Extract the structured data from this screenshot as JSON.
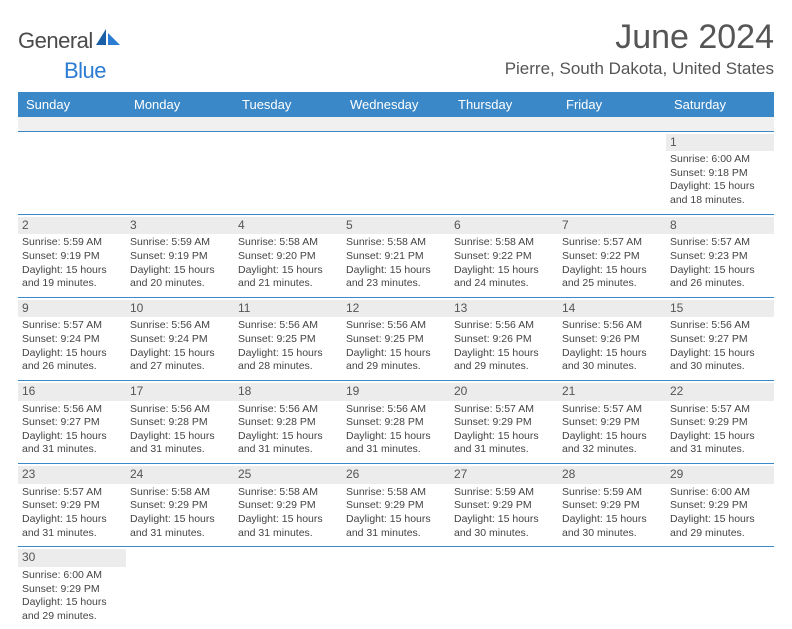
{
  "brand": {
    "name_part1": "General",
    "name_part2": "Blue"
  },
  "title": "June 2024",
  "location": "Pierre, South Dakota, United States",
  "colors": {
    "header_bg": "#3b88c9",
    "header_text": "#ffffff",
    "rule": "#3b88c9",
    "daynum_bg": "#ececec",
    "body_text": "#444444",
    "title_text": "#555555"
  },
  "day_headers": [
    "Sunday",
    "Monday",
    "Tuesday",
    "Wednesday",
    "Thursday",
    "Friday",
    "Saturday"
  ],
  "weeks": [
    [
      null,
      null,
      null,
      null,
      null,
      null,
      {
        "n": "1",
        "sunrise": "6:00 AM",
        "sunset": "9:18 PM",
        "daylight": "15 hours and 18 minutes."
      }
    ],
    [
      {
        "n": "2",
        "sunrise": "5:59 AM",
        "sunset": "9:19 PM",
        "daylight": "15 hours and 19 minutes."
      },
      {
        "n": "3",
        "sunrise": "5:59 AM",
        "sunset": "9:19 PM",
        "daylight": "15 hours and 20 minutes."
      },
      {
        "n": "4",
        "sunrise": "5:58 AM",
        "sunset": "9:20 PM",
        "daylight": "15 hours and 21 minutes."
      },
      {
        "n": "5",
        "sunrise": "5:58 AM",
        "sunset": "9:21 PM",
        "daylight": "15 hours and 23 minutes."
      },
      {
        "n": "6",
        "sunrise": "5:58 AM",
        "sunset": "9:22 PM",
        "daylight": "15 hours and 24 minutes."
      },
      {
        "n": "7",
        "sunrise": "5:57 AM",
        "sunset": "9:22 PM",
        "daylight": "15 hours and 25 minutes."
      },
      {
        "n": "8",
        "sunrise": "5:57 AM",
        "sunset": "9:23 PM",
        "daylight": "15 hours and 26 minutes."
      }
    ],
    [
      {
        "n": "9",
        "sunrise": "5:57 AM",
        "sunset": "9:24 PM",
        "daylight": "15 hours and 26 minutes."
      },
      {
        "n": "10",
        "sunrise": "5:56 AM",
        "sunset": "9:24 PM",
        "daylight": "15 hours and 27 minutes."
      },
      {
        "n": "11",
        "sunrise": "5:56 AM",
        "sunset": "9:25 PM",
        "daylight": "15 hours and 28 minutes."
      },
      {
        "n": "12",
        "sunrise": "5:56 AM",
        "sunset": "9:25 PM",
        "daylight": "15 hours and 29 minutes."
      },
      {
        "n": "13",
        "sunrise": "5:56 AM",
        "sunset": "9:26 PM",
        "daylight": "15 hours and 29 minutes."
      },
      {
        "n": "14",
        "sunrise": "5:56 AM",
        "sunset": "9:26 PM",
        "daylight": "15 hours and 30 minutes."
      },
      {
        "n": "15",
        "sunrise": "5:56 AM",
        "sunset": "9:27 PM",
        "daylight": "15 hours and 30 minutes."
      }
    ],
    [
      {
        "n": "16",
        "sunrise": "5:56 AM",
        "sunset": "9:27 PM",
        "daylight": "15 hours and 31 minutes."
      },
      {
        "n": "17",
        "sunrise": "5:56 AM",
        "sunset": "9:28 PM",
        "daylight": "15 hours and 31 minutes."
      },
      {
        "n": "18",
        "sunrise": "5:56 AM",
        "sunset": "9:28 PM",
        "daylight": "15 hours and 31 minutes."
      },
      {
        "n": "19",
        "sunrise": "5:56 AM",
        "sunset": "9:28 PM",
        "daylight": "15 hours and 31 minutes."
      },
      {
        "n": "20",
        "sunrise": "5:57 AM",
        "sunset": "9:29 PM",
        "daylight": "15 hours and 31 minutes."
      },
      {
        "n": "21",
        "sunrise": "5:57 AM",
        "sunset": "9:29 PM",
        "daylight": "15 hours and 32 minutes."
      },
      {
        "n": "22",
        "sunrise": "5:57 AM",
        "sunset": "9:29 PM",
        "daylight": "15 hours and 31 minutes."
      }
    ],
    [
      {
        "n": "23",
        "sunrise": "5:57 AM",
        "sunset": "9:29 PM",
        "daylight": "15 hours and 31 minutes."
      },
      {
        "n": "24",
        "sunrise": "5:58 AM",
        "sunset": "9:29 PM",
        "daylight": "15 hours and 31 minutes."
      },
      {
        "n": "25",
        "sunrise": "5:58 AM",
        "sunset": "9:29 PM",
        "daylight": "15 hours and 31 minutes."
      },
      {
        "n": "26",
        "sunrise": "5:58 AM",
        "sunset": "9:29 PM",
        "daylight": "15 hours and 31 minutes."
      },
      {
        "n": "27",
        "sunrise": "5:59 AM",
        "sunset": "9:29 PM",
        "daylight": "15 hours and 30 minutes."
      },
      {
        "n": "28",
        "sunrise": "5:59 AM",
        "sunset": "9:29 PM",
        "daylight": "15 hours and 30 minutes."
      },
      {
        "n": "29",
        "sunrise": "6:00 AM",
        "sunset": "9:29 PM",
        "daylight": "15 hours and 29 minutes."
      }
    ],
    [
      {
        "n": "30",
        "sunrise": "6:00 AM",
        "sunset": "9:29 PM",
        "daylight": "15 hours and 29 minutes."
      },
      null,
      null,
      null,
      null,
      null,
      null
    ]
  ],
  "labels": {
    "sunrise": "Sunrise:",
    "sunset": "Sunset:",
    "daylight": "Daylight:"
  }
}
